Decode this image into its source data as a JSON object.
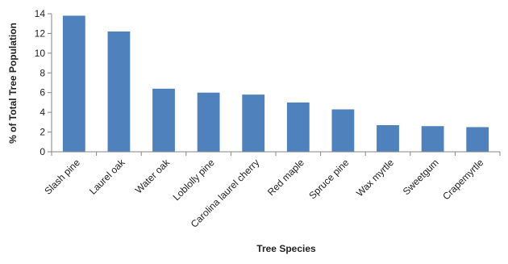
{
  "chart_data": {
    "type": "bar",
    "categories": [
      "Slash pine",
      "Laurel oak",
      "Water oak",
      "Loblolly pine",
      "Carolina laurel cherry",
      "Red maple",
      "Spruce pine",
      "Wax myrtle",
      "Sweetgum",
      "Crapemyrtle"
    ],
    "values": [
      13.8,
      12.2,
      6.4,
      6.0,
      5.8,
      5.0,
      4.3,
      2.7,
      2.6,
      2.5
    ],
    "xlabel": "Tree Species",
    "ylabel": "% of Total Tree Population",
    "ylim": [
      0,
      14
    ],
    "yticks": [
      0,
      2,
      4,
      6,
      8,
      10,
      12,
      14
    ],
    "grid": false,
    "legend": "none",
    "bar_color": "#4f81bd",
    "axis_color": "#868686"
  }
}
